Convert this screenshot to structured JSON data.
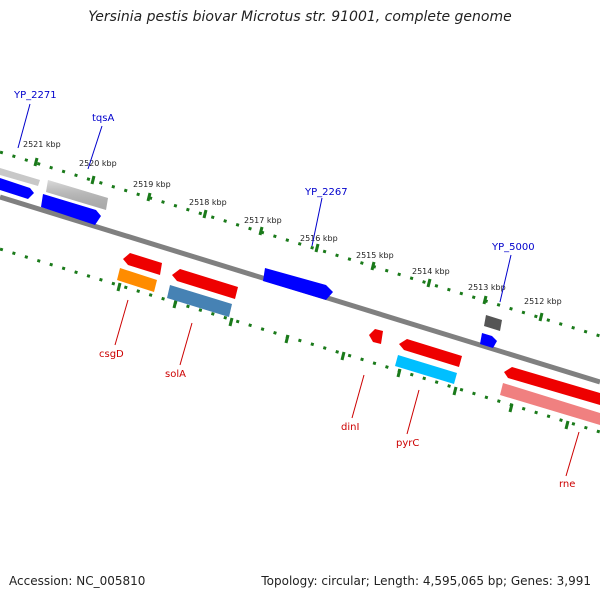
{
  "title": "Yersinia pestis biovar Microtus str. 91001, complete genome",
  "footer": {
    "accession": "Accession: NC_005810",
    "summary": "Topology: circular; Length: 4,595,065 bp; Genes: 3,991"
  },
  "ticks": [
    "2521 kbp",
    "2520 kbp",
    "2519 kbp",
    "2518 kbp",
    "2517 kbp",
    "2516 kbp",
    "2515 kbp",
    "2514 kbp",
    "2513 kbp",
    "2512 kbp"
  ],
  "forward_labels": [
    "YP_2271",
    "tqsA",
    "YP_2267",
    "YP_5000"
  ],
  "reverse_labels": [
    "csgD",
    "solA",
    "dinI",
    "pyrC",
    "rne"
  ],
  "colors": {
    "label_forward": "#0000cc",
    "label_reverse": "#cc0000",
    "backbone": "#808080",
    "dots": "#1a7a1a",
    "blue": "#0000ff",
    "gray": "#c8c8c8",
    "dark_gray": "#555555",
    "red": "#ee0000",
    "orange": "#ff8c00",
    "steel": "#4682b4",
    "cyan": "#00bfff",
    "pink": "#f08080"
  }
}
